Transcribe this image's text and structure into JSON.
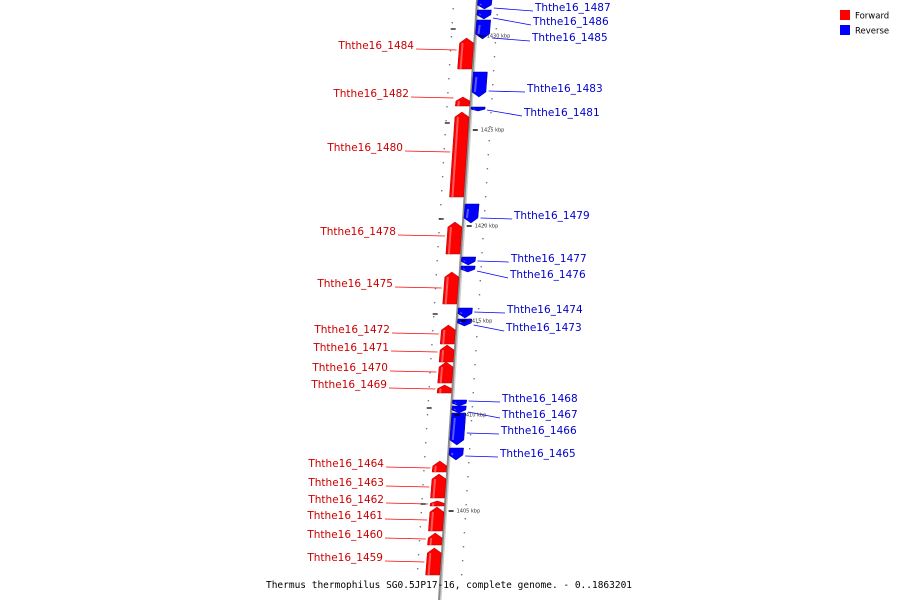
{
  "title": "Thermus thermophilus SG0.5JP17-16, complete genome. - 0..1863201",
  "colors": {
    "forward": "#ff0000",
    "reverse": "#0000ff",
    "axis": "#999999"
  },
  "legend": [
    {
      "label": "Forward",
      "strand": "forward"
    },
    {
      "label": "Reverse",
      "strand": "reverse"
    }
  ],
  "genes": [
    {
      "name": "Ththe16_1487",
      "strand": "reverse"
    },
    {
      "name": "Ththe16_1486",
      "strand": "reverse"
    },
    {
      "name": "Ththe16_1485",
      "strand": "reverse"
    },
    {
      "name": "Ththe16_1484",
      "strand": "forward"
    },
    {
      "name": "Ththe16_1483",
      "strand": "reverse"
    },
    {
      "name": "Ththe16_1482",
      "strand": "forward"
    },
    {
      "name": "Ththe16_1481",
      "strand": "reverse"
    },
    {
      "name": "Ththe16_1480",
      "strand": "forward"
    },
    {
      "name": "Ththe16_1479",
      "strand": "reverse"
    },
    {
      "name": "Ththe16_1478",
      "strand": "forward"
    },
    {
      "name": "Ththe16_1477",
      "strand": "reverse"
    },
    {
      "name": "Ththe16_1476",
      "strand": "reverse"
    },
    {
      "name": "Ththe16_1475",
      "strand": "forward"
    },
    {
      "name": "Ththe16_1474",
      "strand": "reverse"
    },
    {
      "name": "Ththe16_1473",
      "strand": "reverse"
    },
    {
      "name": "Ththe16_1472",
      "strand": "forward"
    },
    {
      "name": "Ththe16_1471",
      "strand": "forward"
    },
    {
      "name": "Ththe16_1470",
      "strand": "forward"
    },
    {
      "name": "Ththe16_1469",
      "strand": "forward"
    },
    {
      "name": "Ththe16_1468",
      "strand": "reverse"
    },
    {
      "name": "Ththe16_1467",
      "strand": "reverse"
    },
    {
      "name": "Ththe16_1466",
      "strand": "reverse"
    },
    {
      "name": "Ththe16_1465",
      "strand": "reverse"
    },
    {
      "name": "Ththe16_1464",
      "strand": "forward"
    },
    {
      "name": "Ththe16_1463",
      "strand": "forward"
    },
    {
      "name": "Ththe16_1462",
      "strand": "forward"
    },
    {
      "name": "Ththe16_1461",
      "strand": "forward"
    },
    {
      "name": "Ththe16_1460",
      "strand": "forward"
    },
    {
      "name": "Ththe16_1459",
      "strand": "forward"
    }
  ],
  "ticks": [
    "1430 kbp",
    "1425 kbp",
    "1420 kbp",
    "1415 kbp",
    "1410 kbp",
    "1405 kbp"
  ]
}
